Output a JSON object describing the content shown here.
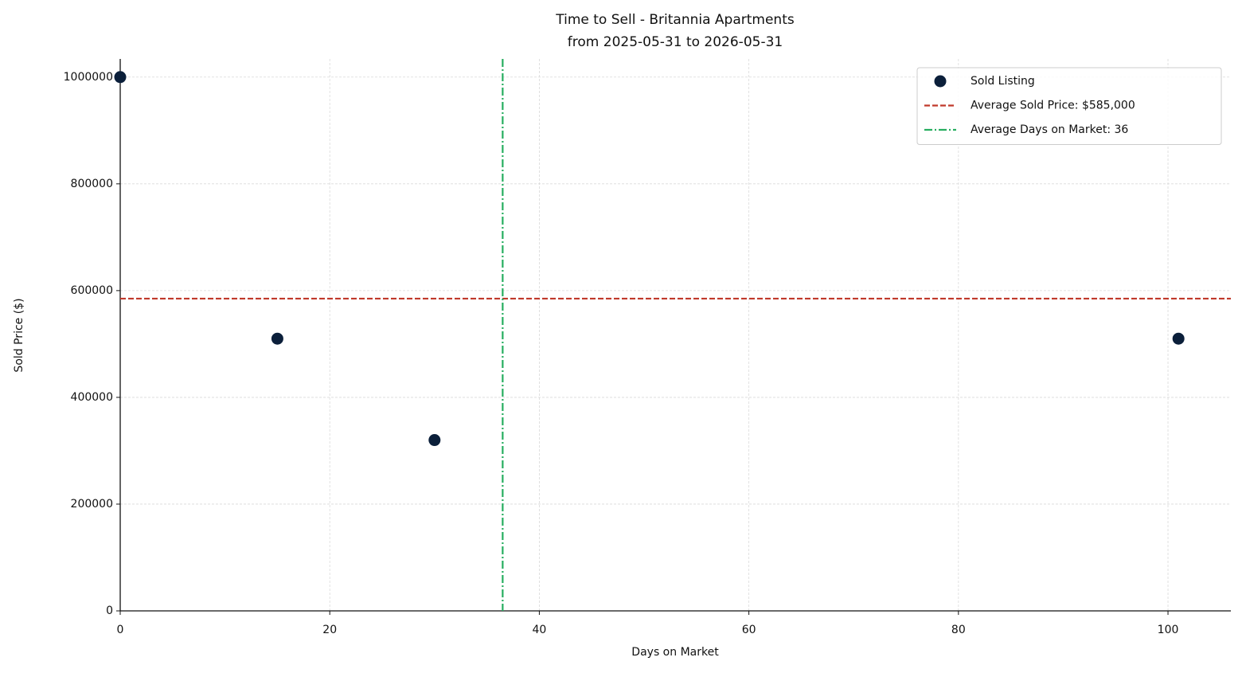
{
  "chart_data": {
    "type": "scatter",
    "title": "Time to Sell - Britannia Apartments",
    "subtitle": "from 2025-05-31 to 2026-05-31",
    "xlabel": "Days on Market",
    "ylabel": "Sold Price ($)",
    "series": [
      {
        "name": "Sold Listing",
        "color": "#0b1f3a",
        "x": [
          0,
          15,
          30,
          101
        ],
        "values": [
          1000000,
          510000,
          320000,
          510000
        ]
      }
    ],
    "reference_lines": [
      {
        "name": "Average Sold Price: $585,000",
        "color": "#c0392b",
        "orientation": "horizontal",
        "style": "dashed",
        "value": 585000
      },
      {
        "name": "Average Days on Market: 36",
        "color": "#27ae60",
        "orientation": "vertical",
        "style": "dashdot",
        "value": 36.5
      }
    ],
    "xlim": [
      0,
      106
    ],
    "ylim": [
      0,
      1034000
    ],
    "xticks": [
      0,
      20,
      40,
      60,
      80,
      100
    ],
    "yticks": [
      0,
      200000,
      400000,
      600000,
      800000,
      1000000
    ],
    "grid": true,
    "legend": "upper right"
  }
}
